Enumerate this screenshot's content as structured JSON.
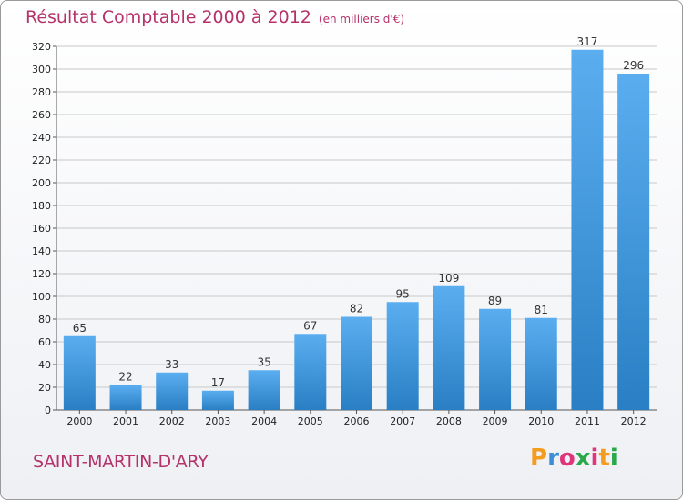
{
  "header": {
    "title": "Résultat Comptable 2000 à 2012",
    "unit_note": "(en milliers d'€)"
  },
  "footer": {
    "commune": "SAINT-MARTIN-D'ARY",
    "logo_text": "Proxiti",
    "logo_colors": [
      "#f39c1e",
      "#3a8fd6",
      "#e0357a",
      "#2aa84a",
      "#e0357a",
      "#f39c1e",
      "#2aa84a"
    ]
  },
  "colors": {
    "bar_top": "#5aaef0",
    "bar_bottom": "#2a7fc4",
    "grid": "#c8c8c8",
    "title": "#b5326a"
  },
  "chart_data": {
    "type": "bar",
    "title": "Résultat Comptable 2000 à 2012",
    "subtitle": "(en milliers d'€)",
    "xlabel": "",
    "ylabel": "",
    "categories": [
      "2000",
      "2001",
      "2002",
      "2003",
      "2004",
      "2005",
      "2006",
      "2007",
      "2008",
      "2009",
      "2010",
      "2011",
      "2012"
    ],
    "values": [
      65,
      22,
      33,
      17,
      35,
      67,
      82,
      95,
      109,
      89,
      81,
      317,
      296
    ],
    "ylim": [
      0,
      320
    ],
    "yticks": [
      0,
      20,
      40,
      60,
      80,
      100,
      120,
      140,
      160,
      180,
      200,
      220,
      240,
      260,
      280,
      300,
      320
    ],
    "grid": true,
    "legend": "none"
  }
}
